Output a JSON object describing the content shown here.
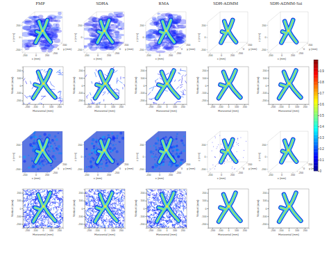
{
  "chart_data": {
    "type": "image_grid",
    "columns": [
      "FMP",
      "SDHA",
      "RMA",
      "SDH-ADMM",
      "SDH-ADMM-Sai"
    ],
    "panels_3d": {
      "xlabel": "x (mm)",
      "ylabel": "y (mm)",
      "zlabel": "z (mm)",
      "xlim": [
        -250,
        250
      ],
      "ylim": [
        -250,
        250
      ],
      "zlim": [
        -250,
        250
      ],
      "xticks": [
        -200,
        0,
        200
      ],
      "yticks": [
        -200,
        0,
        200
      ],
      "zticks": [
        -200,
        0,
        200
      ]
    },
    "panels_2d": {
      "xlabel": "Horizontal (mm)",
      "ylabel": "Vertical (mm)",
      "xlim": [
        -250,
        250
      ],
      "ylim": [
        -250,
        250
      ],
      "xticks": [
        -200,
        -100,
        0,
        100,
        200
      ],
      "yticks": [
        -200,
        -100,
        0,
        100,
        200
      ]
    },
    "colorbar": {
      "range": [
        0,
        1
      ],
      "ticks": [
        0,
        0.1,
        0.2,
        0.3,
        0.4,
        0.5,
        0.6,
        0.7,
        0.8,
        0.9
      ]
    }
  }
}
